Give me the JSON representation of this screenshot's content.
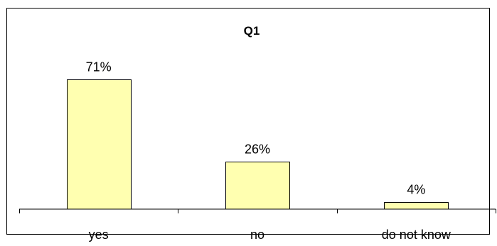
{
  "chart_data": {
    "type": "bar",
    "title": "Q1",
    "categories": [
      "yes",
      "no",
      "do not know"
    ],
    "values": [
      71,
      26,
      4
    ],
    "value_labels": [
      "71%",
      "26%",
      "4%"
    ],
    "unit": "%",
    "ylim": [
      0,
      100
    ],
    "grid": false,
    "legend": "none",
    "bar_fill": "#FFFFB0",
    "bar_stroke": "#000000"
  }
}
